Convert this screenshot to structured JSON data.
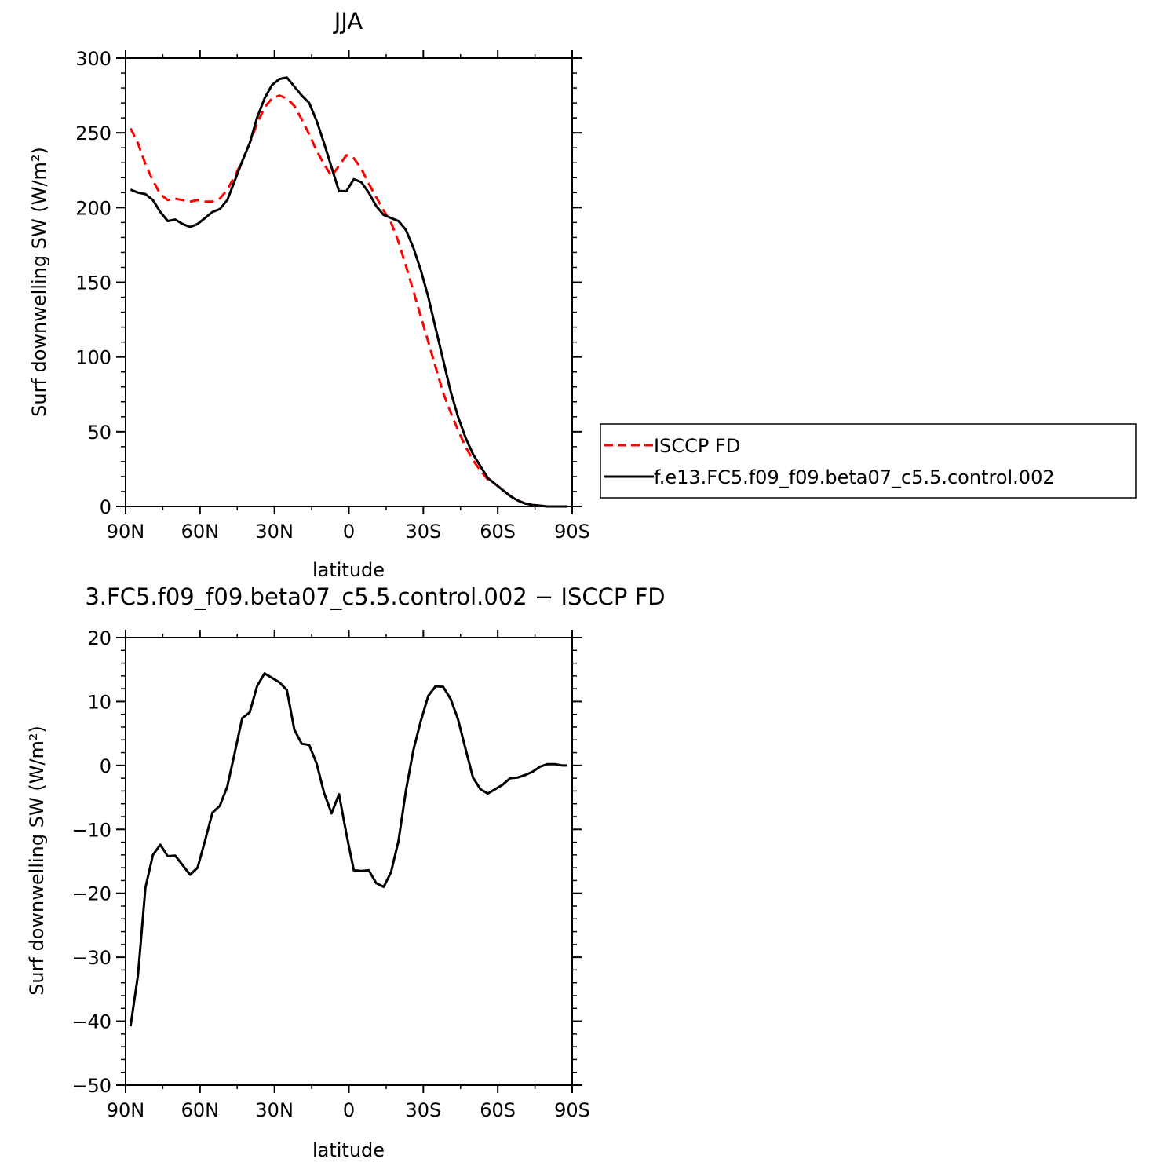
{
  "chart_data": [
    {
      "type": "line",
      "title": "JJA",
      "xlabel": "latitude",
      "ylabel": "Surf downwelling SW (W/m²)",
      "xlim": [
        -90,
        90
      ],
      "ylim": [
        0,
        300
      ],
      "x_ticks": [
        -90,
        -60,
        -30,
        0,
        30,
        60,
        90
      ],
      "x_tick_labels": [
        "90N",
        "60N",
        "30N",
        "0",
        "30S",
        "60S",
        "90S"
      ],
      "y_ticks": [
        0,
        50,
        100,
        150,
        200,
        250,
        300
      ],
      "y_tick_labels": [
        "0",
        "50",
        "100",
        "150",
        "200",
        "250",
        "300"
      ],
      "legend": "right",
      "series": [
        {
          "name": "ISCCP FD",
          "color": "#ff0000",
          "dash": true,
          "x": [
            -88,
            -85,
            -82,
            -79,
            -76,
            -73,
            -70,
            -67,
            -64,
            -61,
            -58,
            -55,
            -52,
            -49,
            -46,
            -43,
            -40,
            -37,
            -34,
            -31,
            -28,
            -25,
            -22,
            -19,
            -16,
            -13,
            -10,
            -7,
            -4,
            -1,
            2,
            5,
            8,
            11,
            14,
            17,
            20,
            23,
            26,
            29,
            32,
            35,
            38,
            41,
            44,
            47,
            50,
            53,
            56,
            59,
            62,
            65,
            68,
            71,
            74,
            77,
            80,
            83,
            86,
            88
          ],
          "y": [
            253,
            243,
            229,
            218,
            209,
            205,
            206,
            205,
            204,
            205,
            204,
            204,
            206,
            212,
            221,
            231,
            243,
            256,
            267,
            273,
            275,
            273,
            268,
            259,
            249,
            238,
            229,
            221,
            228,
            235,
            233,
            226,
            216,
            207,
            198,
            190,
            177,
            161,
            144,
            127,
            110,
            93,
            76,
            63,
            51,
            40,
            31,
            24,
            18,
            15,
            11,
            7,
            4,
            2,
            1,
            0.5,
            0,
            0,
            0,
            0
          ]
        },
        {
          "name": "f.e13.FC5.f09_f09.beta07_c5.5.control.002",
          "color": "#000000",
          "dash": false,
          "x": [
            -88,
            -85,
            -82,
            -79,
            -76,
            -73,
            -70,
            -67,
            -64,
            -61,
            -58,
            -55,
            -52,
            -49,
            -46,
            -43,
            -40,
            -37,
            -34,
            -31,
            -28,
            -25,
            -22,
            -19,
            -16,
            -13,
            -10,
            -7,
            -4,
            -1,
            2,
            5,
            8,
            11,
            14,
            17,
            20,
            23,
            26,
            29,
            32,
            35,
            38,
            41,
            44,
            47,
            50,
            53,
            56,
            59,
            62,
            65,
            68,
            71,
            74,
            77,
            80,
            83,
            86,
            88
          ],
          "y": [
            212,
            210,
            209,
            205,
            197,
            191,
            192,
            189,
            187,
            189,
            193,
            197,
            199,
            205,
            218,
            231,
            243,
            260,
            273,
            282,
            286,
            287,
            281,
            275,
            270,
            258,
            243,
            227,
            211,
            211,
            219,
            217,
            210,
            201,
            195,
            193,
            191,
            185,
            173,
            158,
            140,
            119,
            98,
            77,
            60,
            46,
            35,
            27,
            19,
            15,
            11,
            7,
            4,
            2,
            1,
            0.5,
            0,
            0,
            0,
            0
          ]
        }
      ]
    },
    {
      "type": "line",
      "title": "3.FC5.f09_f09.beta07_c5.5.control.002 − ISCCP FD",
      "xlabel": "latitude",
      "ylabel": "Surf downwelling SW (W/m²)",
      "xlim": [
        -90,
        90
      ],
      "ylim": [
        -50,
        20
      ],
      "x_ticks": [
        -90,
        -60,
        -30,
        0,
        30,
        60,
        90
      ],
      "x_tick_labels": [
        "90N",
        "60N",
        "30N",
        "0",
        "30S",
        "60S",
        "90S"
      ],
      "y_ticks": [
        -50,
        -40,
        -30,
        -20,
        -10,
        0,
        10,
        20
      ],
      "y_tick_labels": [
        "−50",
        "−40",
        "−30",
        "−20",
        "−10",
        "0",
        "10",
        "20"
      ],
      "series": [
        {
          "color": "#000000",
          "dash": false,
          "x": [
            -88,
            -85,
            -82,
            -79,
            -76,
            -73,
            -70,
            -67,
            -64,
            -61,
            -58,
            -55,
            -52,
            -49,
            -46,
            -43,
            -40,
            -37,
            -34,
            -31,
            -28,
            -25,
            -22,
            -19,
            -16,
            -13,
            -10,
            -7,
            -4,
            -1,
            2,
            5,
            8,
            11,
            14,
            17,
            20,
            23,
            26,
            29,
            32,
            35,
            38,
            41,
            44,
            47,
            50,
            53,
            56,
            59,
            62,
            65,
            68,
            71,
            74,
            77,
            80,
            83,
            86,
            88
          ],
          "y": [
            -40.8,
            -32.8,
            -19.1,
            -14.0,
            -12.4,
            -14.2,
            -14.1,
            -15.6,
            -17.1,
            -16.0,
            -11.8,
            -7.4,
            -6.3,
            -3.3,
            2.0,
            7.4,
            8.3,
            12.4,
            14.4,
            13.7,
            13.0,
            11.8,
            5.6,
            3.4,
            3.2,
            0.3,
            -4.3,
            -7.5,
            -4.5,
            -10.7,
            -16.4,
            -16.5,
            -16.4,
            -18.4,
            -19.0,
            -16.7,
            -11.8,
            -3.9,
            2.4,
            7.0,
            10.9,
            12.4,
            12.3,
            10.4,
            7.2,
            2.6,
            -1.9,
            -3.7,
            -4.4,
            -3.7,
            -3.0,
            -2.0,
            -1.9,
            -1.5,
            -1.0,
            -0.2,
            0.2,
            0.2,
            0.0,
            0.0
          ]
        }
      ]
    }
  ],
  "legend": {
    "items": [
      {
        "label": "ISCCP FD",
        "color": "#ff0000",
        "dash": true
      },
      {
        "label": "f.e13.FC5.f09_f09.beta07_c5.5.control.002",
        "color": "#000000",
        "dash": false
      }
    ]
  }
}
